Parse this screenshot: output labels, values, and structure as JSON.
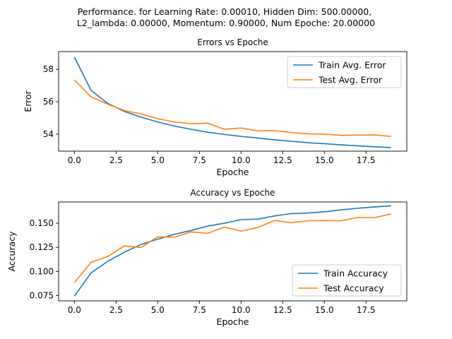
{
  "figure": {
    "suptitle_lines": [
      "Performance. for Learning Rate: 0.00010, Hidden Dim: 500.00000,",
      "L2_lambda: 0.00000, Momentum: 0.90000, Num Epoche: 20.00000"
    ]
  },
  "chart_data": [
    {
      "type": "line",
      "title": "Errors vs Epoche",
      "xlabel": "Epoche",
      "ylabel": "Error",
      "xlim": [
        -0.95,
        19.95
      ],
      "ylim": [
        52.95,
        59.1
      ],
      "xticks": [
        0,
        2.5,
        5,
        7.5,
        10,
        12.5,
        15,
        17.5
      ],
      "xtick_labels": [
        "0.0",
        "2.5",
        "5.0",
        "7.5",
        "10.0",
        "12.5",
        "15.0",
        "17.5"
      ],
      "yticks": [
        54,
        56,
        58
      ],
      "ytick_labels": [
        "54",
        "56",
        "58"
      ],
      "legend_position": "top-right",
      "x": [
        0,
        1,
        2,
        3,
        4,
        5,
        6,
        7,
        8,
        9,
        10,
        11,
        12,
        13,
        14,
        15,
        16,
        17,
        18,
        19
      ],
      "series": [
        {
          "name": "Train Avg. Error",
          "color": "#1f77b4",
          "values": [
            58.75,
            56.7,
            55.9,
            55.4,
            55.05,
            54.75,
            54.5,
            54.3,
            54.12,
            53.98,
            53.86,
            53.76,
            53.65,
            53.56,
            53.47,
            53.41,
            53.34,
            53.28,
            53.22,
            53.17
          ]
        },
        {
          "name": "Test Avg. Error",
          "color": "#ff7f0e",
          "values": [
            57.35,
            56.3,
            55.85,
            55.45,
            55.25,
            54.95,
            54.75,
            54.65,
            54.68,
            54.3,
            54.38,
            54.2,
            54.22,
            54.1,
            54.02,
            54.0,
            53.93,
            53.94,
            53.95,
            53.86
          ]
        }
      ]
    },
    {
      "type": "line",
      "title": "Accuracy vs Epoche",
      "xlabel": "Epoche",
      "ylabel": "Accuracy",
      "xlim": [
        -0.95,
        19.95
      ],
      "ylim": [
        0.0695,
        0.172
      ],
      "xticks": [
        0,
        2.5,
        5,
        7.5,
        10,
        12.5,
        15,
        17.5
      ],
      "xtick_labels": [
        "0.0",
        "2.5",
        "5.0",
        "7.5",
        "10.0",
        "12.5",
        "15.0",
        "17.5"
      ],
      "yticks": [
        0.075,
        0.1,
        0.125,
        0.15
      ],
      "ytick_labels": [
        "0.075",
        "0.100",
        "0.125",
        "0.150"
      ],
      "legend_position": "bottom-right",
      "x": [
        0,
        1,
        2,
        3,
        4,
        5,
        6,
        7,
        8,
        9,
        10,
        11,
        12,
        13,
        14,
        15,
        16,
        17,
        18,
        19
      ],
      "series": [
        {
          "name": "Train Accuracy",
          "color": "#1f77b4",
          "values": [
            0.0745,
            0.0985,
            0.1105,
            0.12,
            0.128,
            0.1335,
            0.1385,
            0.1425,
            0.147,
            0.15,
            0.1537,
            0.1543,
            0.1575,
            0.16,
            0.1605,
            0.1618,
            0.1638,
            0.1655,
            0.1668,
            0.168
          ]
        },
        {
          "name": "Test Accuracy",
          "color": "#ff7f0e",
          "values": [
            0.0885,
            0.1095,
            0.1155,
            0.1265,
            0.1248,
            0.136,
            0.1355,
            0.141,
            0.1395,
            0.146,
            0.1418,
            0.1455,
            0.1528,
            0.1505,
            0.1525,
            0.1527,
            0.1525,
            0.156,
            0.1558,
            0.1595
          ]
        }
      ]
    }
  ]
}
